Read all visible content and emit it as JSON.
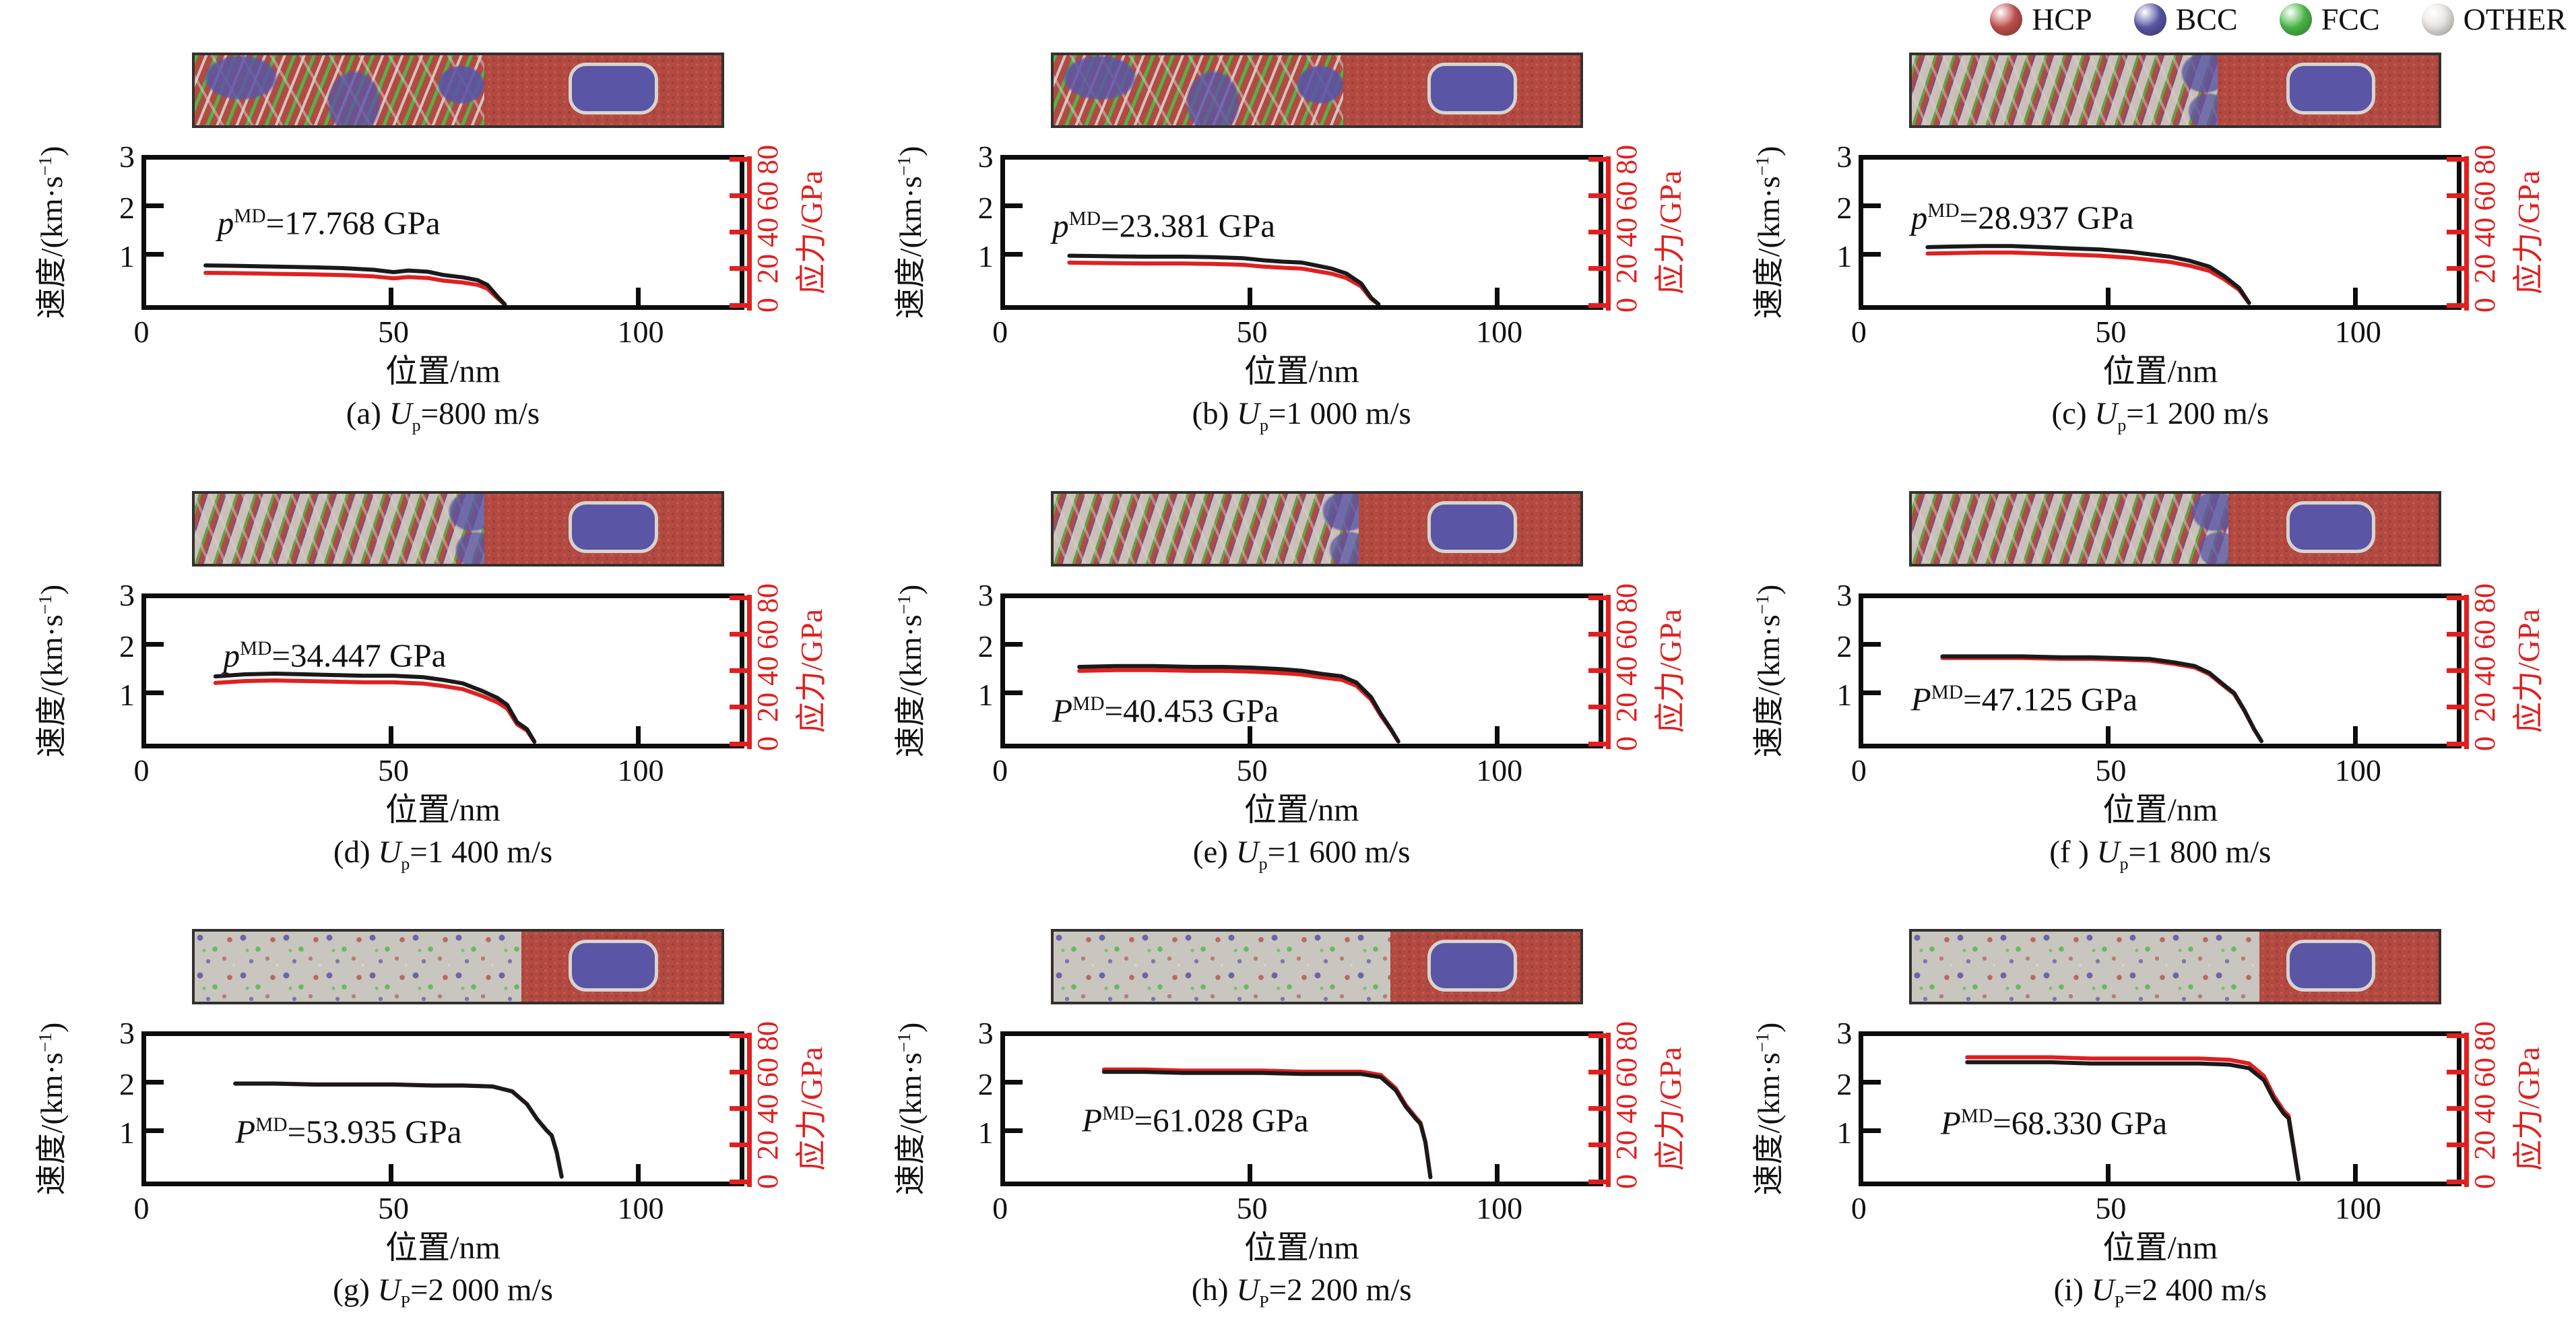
{
  "colors": {
    "stress_red": "#e02020",
    "velocity_black": "#1a1a1a",
    "snapshot_red": "#b24a42",
    "snapshot_blue": "#5a55a4",
    "snapshot_green": "#4db848",
    "snapshot_gray": "#c9c5bf"
  },
  "legend": {
    "items": [
      {
        "label": "HCP",
        "color": "#c0504d"
      },
      {
        "label": "BCC",
        "color": "#5b57a6"
      },
      {
        "label": "FCC",
        "color": "#4db848"
      },
      {
        "label": "OTHER",
        "color": "#e8e5e1"
      }
    ]
  },
  "chart_data": {
    "type": "line",
    "u_symbol": "U",
    "shared_axes": {
      "x_label": "位置/nm",
      "x_ticks": [
        "0",
        "50",
        "100"
      ],
      "x_max_nm": 120,
      "y_left_prefix": "速度/(km·s",
      "y_left_sup": "−1",
      "y_left_suffix": ")",
      "y_left_ticks": [
        "3",
        "2",
        "1"
      ],
      "y_left_max_km_s": 3,
      "y_right_label": "应力/GPa",
      "y_right_ticks": [
        "80",
        "60",
        "40",
        "20",
        "0"
      ],
      "y_right_max_gpa": 80,
      "grid": false,
      "legend_position": "top-right"
    },
    "series_note": "Each panel: black curve = particle velocity (left axis), red curve = stress (right axis); profile gives [position_nm, fraction_of_plateau] shared by both curves.",
    "panels": [
      {
        "id": "a",
        "caption_prefix": "(a) ",
        "caption_sub": "p",
        "caption_suffix": "=800 m/s",
        "up_m_s": 800,
        "annotation_symbol": "p",
        "annotation_sup": "MD",
        "annotation_suffix": "=17.768 GPa",
        "p_md_gpa": 17.768,
        "velocity_plateau_km_s": 0.82,
        "shock_front_nm": 72.5,
        "ann_pos": {
          "left_pct": 12,
          "top_pct": 26
        },
        "snapshot": {
          "style": "striped",
          "front_pct": 55,
          "inclusion": {
            "left_pct": 71,
            "top_pct": 11,
            "width_pct": 17,
            "height_pct": 74
          }
        },
        "profile": [
          [
            12,
            1.0
          ],
          [
            18,
            0.99
          ],
          [
            26,
            0.97
          ],
          [
            34,
            0.95
          ],
          [
            40,
            0.93
          ],
          [
            46,
            0.89
          ],
          [
            50,
            0.83
          ],
          [
            53,
            0.87
          ],
          [
            57,
            0.84
          ],
          [
            60,
            0.76
          ],
          [
            64,
            0.7
          ],
          [
            67,
            0.63
          ],
          [
            69,
            0.51
          ],
          [
            71,
            0.22
          ],
          [
            72.5,
            0.02
          ]
        ]
      },
      {
        "id": "b",
        "caption_prefix": "(b) ",
        "caption_sub": "p",
        "caption_suffix": "=1 000 m/s",
        "up_m_s": 1000,
        "annotation_symbol": "p",
        "annotation_sup": "MD",
        "annotation_suffix": "=23.381 GPa",
        "p_md_gpa": 23.381,
        "velocity_plateau_km_s": 1.02,
        "shock_front_nm": 75.5,
        "ann_pos": {
          "left_pct": 8,
          "top_pct": 28
        },
        "snapshot": {
          "style": "striped",
          "front_pct": 55,
          "inclusion": {
            "left_pct": 71,
            "top_pct": 11,
            "width_pct": 17,
            "height_pct": 74
          }
        },
        "profile": [
          [
            13,
            1.0
          ],
          [
            20,
            0.99
          ],
          [
            28,
            0.98
          ],
          [
            36,
            0.98
          ],
          [
            42,
            0.97
          ],
          [
            48,
            0.95
          ],
          [
            52,
            0.91
          ],
          [
            56,
            0.88
          ],
          [
            60,
            0.86
          ],
          [
            63,
            0.8
          ],
          [
            66,
            0.74
          ],
          [
            69,
            0.64
          ],
          [
            72,
            0.44
          ],
          [
            74,
            0.15
          ],
          [
            75.5,
            0.02
          ]
        ]
      },
      {
        "id": "c",
        "caption_prefix": "(c) ",
        "caption_sub": "p",
        "caption_suffix": "=1 200 m/s",
        "up_m_s": 1200,
        "annotation_symbol": "p",
        "annotation_sup": "MD",
        "annotation_suffix": "=28.937 GPa",
        "p_md_gpa": 28.937,
        "velocity_plateau_km_s": 1.22,
        "shock_front_nm": 78,
        "ann_pos": {
          "left_pct": 8,
          "top_pct": 22
        },
        "snapshot": {
          "style": "mixed",
          "front_pct": 58,
          "inclusion": {
            "left_pct": 71,
            "top_pct": 11,
            "width_pct": 17,
            "height_pct": 74
          }
        },
        "profile": [
          [
            13,
            0.98
          ],
          [
            18,
            0.99
          ],
          [
            24,
            1.0
          ],
          [
            30,
            1.0
          ],
          [
            36,
            0.98
          ],
          [
            42,
            0.96
          ],
          [
            48,
            0.94
          ],
          [
            54,
            0.9
          ],
          [
            58,
            0.86
          ],
          [
            62,
            0.82
          ],
          [
            66,
            0.75
          ],
          [
            70,
            0.65
          ],
          [
            73,
            0.49
          ],
          [
            76,
            0.29
          ],
          [
            78,
            0.04
          ]
        ]
      },
      {
        "id": "d",
        "caption_prefix": "(d) ",
        "caption_sub": "p",
        "caption_suffix": "=1 400 m/s",
        "up_m_s": 1400,
        "annotation_symbol": "p",
        "annotation_sup": "MD",
        "annotation_suffix": "=34.447 GPa",
        "p_md_gpa": 34.447,
        "velocity_plateau_km_s": 1.43,
        "shock_front_nm": 78.5,
        "ann_pos": {
          "left_pct": 13,
          "top_pct": 22
        },
        "snapshot": {
          "style": "mixed",
          "front_pct": 55,
          "inclusion": {
            "left_pct": 71,
            "top_pct": 11,
            "width_pct": 17,
            "height_pct": 74
          }
        },
        "profile": [
          [
            14,
            0.97
          ],
          [
            20,
            1.0
          ],
          [
            26,
            1.01
          ],
          [
            32,
            1.0
          ],
          [
            38,
            0.99
          ],
          [
            44,
            0.98
          ],
          [
            50,
            0.98
          ],
          [
            56,
            0.96
          ],
          [
            60,
            0.92
          ],
          [
            64,
            0.87
          ],
          [
            68,
            0.76
          ],
          [
            71,
            0.66
          ],
          [
            73,
            0.56
          ],
          [
            75,
            0.31
          ],
          [
            77,
            0.21
          ],
          [
            78.5,
            0.03
          ]
        ]
      },
      {
        "id": "e",
        "caption_prefix": "(e) ",
        "caption_sub": "p",
        "caption_suffix": "=1 600 m/s",
        "up_m_s": 1600,
        "annotation_symbol": "P",
        "annotation_sup": "MD",
        "annotation_suffix": "=40.453 GPa",
        "p_md_gpa": 40.453,
        "velocity_plateau_km_s": 1.6,
        "shock_front_nm": 79.5,
        "ann_pos": {
          "left_pct": 8,
          "top_pct": 60
        },
        "snapshot": {
          "style": "mixed",
          "front_pct": 58,
          "inclusion": {
            "left_pct": 71,
            "top_pct": 11,
            "width_pct": 17,
            "height_pct": 74
          }
        },
        "profile": [
          [
            15,
            0.99
          ],
          [
            22,
            1.0
          ],
          [
            30,
            1.0
          ],
          [
            38,
            0.99
          ],
          [
            44,
            0.99
          ],
          [
            50,
            0.98
          ],
          [
            56,
            0.96
          ],
          [
            60,
            0.94
          ],
          [
            64,
            0.9
          ],
          [
            68,
            0.87
          ],
          [
            71,
            0.79
          ],
          [
            74,
            0.6
          ],
          [
            76,
            0.38
          ],
          [
            78,
            0.19
          ],
          [
            79.5,
            0.03
          ]
        ]
      },
      {
        "id": "f",
        "caption_prefix": "(f ) ",
        "caption_sub": "p",
        "caption_suffix": "=1 800 m/s",
        "up_m_s": 1800,
        "annotation_symbol": "P",
        "annotation_sup": "MD",
        "annotation_suffix": "=47.125 GPa",
        "p_md_gpa": 47.125,
        "velocity_plateau_km_s": 1.8,
        "shock_front_nm": 80.5,
        "ann_pos": {
          "left_pct": 8,
          "top_pct": 52
        },
        "snapshot": {
          "style": "mixed",
          "front_pct": 60,
          "inclusion": {
            "left_pct": 71,
            "top_pct": 11,
            "width_pct": 17,
            "height_pct": 74
          }
        },
        "profile": [
          [
            16,
            1.0
          ],
          [
            24,
            1.0
          ],
          [
            32,
            1.0
          ],
          [
            40,
            0.99
          ],
          [
            46,
            0.99
          ],
          [
            52,
            0.98
          ],
          [
            58,
            0.97
          ],
          [
            63,
            0.93
          ],
          [
            67,
            0.89
          ],
          [
            70,
            0.81
          ],
          [
            73,
            0.67
          ],
          [
            75,
            0.58
          ],
          [
            77,
            0.39
          ],
          [
            79,
            0.17
          ],
          [
            80.5,
            0.03
          ]
        ]
      },
      {
        "id": "g",
        "caption_prefix": "(g) ",
        "caption_sub": "P",
        "caption_suffix": "=2 000 m/s",
        "up_m_s": 2000,
        "annotation_symbol": "P",
        "annotation_sup": "MD",
        "annotation_suffix": "=53.935 GPa",
        "p_md_gpa": 53.935,
        "velocity_plateau_km_s": 2.02,
        "shock_front_nm": 84,
        "ann_pos": {
          "left_pct": 15,
          "top_pct": 48
        },
        "snapshot": {
          "style": "granular",
          "front_pct": 62,
          "inclusion": {
            "left_pct": 71,
            "top_pct": 11,
            "width_pct": 17,
            "height_pct": 74
          }
        },
        "profile": [
          [
            18,
            1.0
          ],
          [
            26,
            1.0
          ],
          [
            34,
            0.99
          ],
          [
            42,
            0.99
          ],
          [
            50,
            0.99
          ],
          [
            58,
            0.98
          ],
          [
            64,
            0.98
          ],
          [
            70,
            0.97
          ],
          [
            74,
            0.92
          ],
          [
            77,
            0.79
          ],
          [
            79,
            0.64
          ],
          [
            81,
            0.52
          ],
          [
            82,
            0.47
          ],
          [
            83,
            0.3
          ],
          [
            84,
            0.05
          ]
        ]
      },
      {
        "id": "h",
        "caption_prefix": "(h) ",
        "caption_sub": "P",
        "caption_suffix": "=2 200 m/s",
        "up_m_s": 2200,
        "annotation_symbol": "P",
        "annotation_sup": "MD",
        "annotation_suffix": "=61.028 GPa",
        "p_md_gpa": 61.028,
        "velocity_plateau_km_s": 2.24,
        "shock_front_nm": 86,
        "ann_pos": {
          "left_pct": 13,
          "top_pct": 40
        },
        "snapshot": {
          "style": "granular",
          "front_pct": 64,
          "inclusion": {
            "left_pct": 71,
            "top_pct": 11,
            "width_pct": 17,
            "height_pct": 74
          }
        },
        "profile": [
          [
            20,
            1.01
          ],
          [
            28,
            1.01
          ],
          [
            36,
            1.0
          ],
          [
            44,
            1.0
          ],
          [
            52,
            1.0
          ],
          [
            60,
            0.99
          ],
          [
            66,
            0.99
          ],
          [
            72,
            0.99
          ],
          [
            76,
            0.96
          ],
          [
            79,
            0.84
          ],
          [
            81,
            0.69
          ],
          [
            83,
            0.58
          ],
          [
            84,
            0.53
          ],
          [
            85,
            0.36
          ],
          [
            86,
            0.04
          ]
        ]
      },
      {
        "id": "i",
        "caption_prefix": "(i) ",
        "caption_sub": "P",
        "caption_suffix": "=2 400 m/s",
        "up_m_s": 2400,
        "annotation_symbol": "P",
        "annotation_sup": "MD",
        "annotation_suffix": "=68.330 GPa",
        "p_md_gpa": 68.33,
        "velocity_plateau_km_s": 2.46,
        "shock_front_nm": 88,
        "ann_pos": {
          "left_pct": 13,
          "top_pct": 42
        },
        "snapshot": {
          "style": "granular",
          "front_pct": 66,
          "inclusion": {
            "left_pct": 71,
            "top_pct": 11,
            "width_pct": 17,
            "height_pct": 74
          }
        },
        "profile": [
          [
            21,
            1.0
          ],
          [
            30,
            1.0
          ],
          [
            38,
            1.0
          ],
          [
            46,
            0.99
          ],
          [
            54,
            0.99
          ],
          [
            62,
            0.99
          ],
          [
            68,
            0.99
          ],
          [
            74,
            0.98
          ],
          [
            78,
            0.95
          ],
          [
            81,
            0.85
          ],
          [
            83,
            0.69
          ],
          [
            85,
            0.57
          ],
          [
            86,
            0.53
          ],
          [
            87,
            0.28
          ],
          [
            88,
            0.02
          ]
        ]
      }
    ]
  }
}
